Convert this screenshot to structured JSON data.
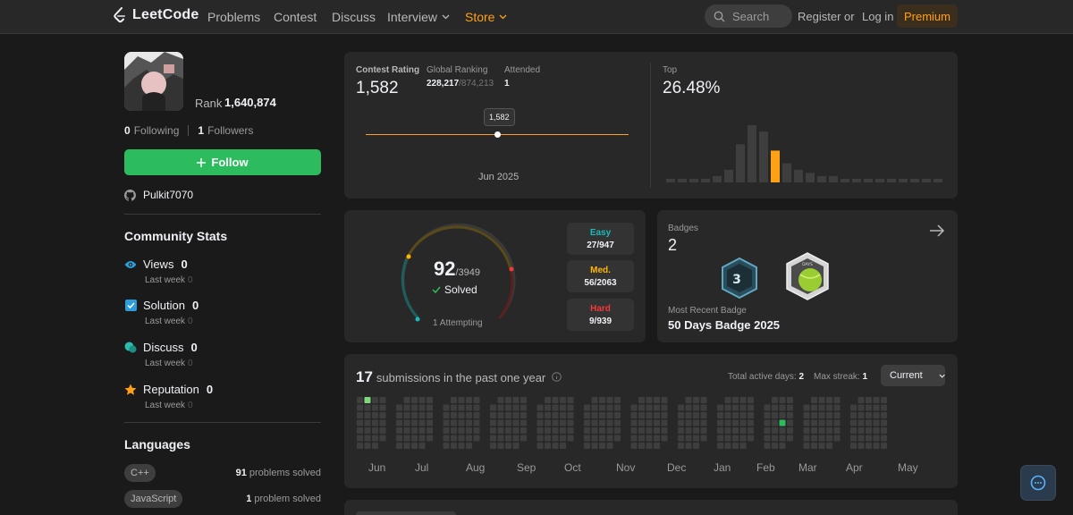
{
  "nav": {
    "logo": "LeetCode",
    "links": [
      "Problems",
      "Contest",
      "Discuss",
      "Interview",
      "Store"
    ],
    "search_placeholder": "Search",
    "register": "Register",
    "or": "or",
    "login": "Log in",
    "premium": "Premium"
  },
  "profile": {
    "rank_label": "Rank",
    "rank_value": "1,640,874",
    "following_count": "0",
    "following_label": "Following",
    "followers_count": "1",
    "followers_label": "Followers",
    "follow_button": "Follow",
    "github": "Pulkit7070"
  },
  "community": {
    "title": "Community Stats",
    "last_week_label": "Last week",
    "items": [
      {
        "label": "Views",
        "value": "0",
        "last_week": "0",
        "icon": "eye-icon",
        "color": "#2d9cdb"
      },
      {
        "label": "Solution",
        "value": "0",
        "last_week": "0",
        "icon": "solution-check-icon",
        "color": "#2d9cdb"
      },
      {
        "label": "Discuss",
        "value": "0",
        "last_week": "0",
        "icon": "discuss-icon",
        "color": "#2cbbad"
      },
      {
        "label": "Reputation",
        "value": "0",
        "last_week": "0",
        "icon": "star-icon",
        "color": "#ffa116"
      }
    ]
  },
  "languages": {
    "title": "Languages",
    "items": [
      {
        "name": "C++",
        "count": "91",
        "suffix": "problems solved"
      },
      {
        "name": "JavaScript",
        "count": "1",
        "suffix": "problem solved"
      }
    ]
  },
  "contest": {
    "rating_label": "Contest Rating",
    "rating": "1,582",
    "global_label": "Global Ranking",
    "global_rank": "228,217",
    "global_total": "/874,213",
    "attended_label": "Attended",
    "attended": "1",
    "tooltip": "1,582",
    "date": "Jun 2025",
    "top_label": "Top",
    "top_value": "26.48%"
  },
  "histogram": {
    "values": [
      1,
      1,
      1,
      1,
      2,
      4,
      12,
      18,
      16,
      10,
      6,
      4,
      3,
      2,
      2,
      1,
      1,
      1,
      1,
      1,
      1,
      1,
      1,
      1
    ],
    "highlight_index": 9,
    "bar_color": "#3e3e3e",
    "highlight_color": "#ffa116"
  },
  "solved": {
    "count": "92",
    "total": "/3949",
    "solved_label": "Solved",
    "attempting": "1 Attempting",
    "easy_label": "Easy",
    "easy_value": "27/947",
    "easy_color": "#1cbaba",
    "med_label": "Med.",
    "med_value": "56/2063",
    "med_color": "#ffb700",
    "hard_label": "Hard",
    "hard_value": "9/939",
    "hard_color": "#f63737"
  },
  "badges": {
    "label": "Badges",
    "count": "2",
    "recent_label": "Most Recent Badge",
    "recent_name": "50 Days Badge 2025",
    "badge1_text": "3",
    "badge2_text": "DAYS"
  },
  "submissions": {
    "count": "17",
    "label": "submissions in the past one year",
    "active_days_label": "Total active days:",
    "active_days": "2",
    "max_streak_label": "Max streak:",
    "max_streak": "1",
    "dropdown": "Current",
    "months": [
      "Jun",
      "Jul",
      "Aug",
      "Sep",
      "Oct",
      "Nov",
      "Dec",
      "Jan",
      "Feb",
      "Mar",
      "Apr",
      "May"
    ]
  }
}
